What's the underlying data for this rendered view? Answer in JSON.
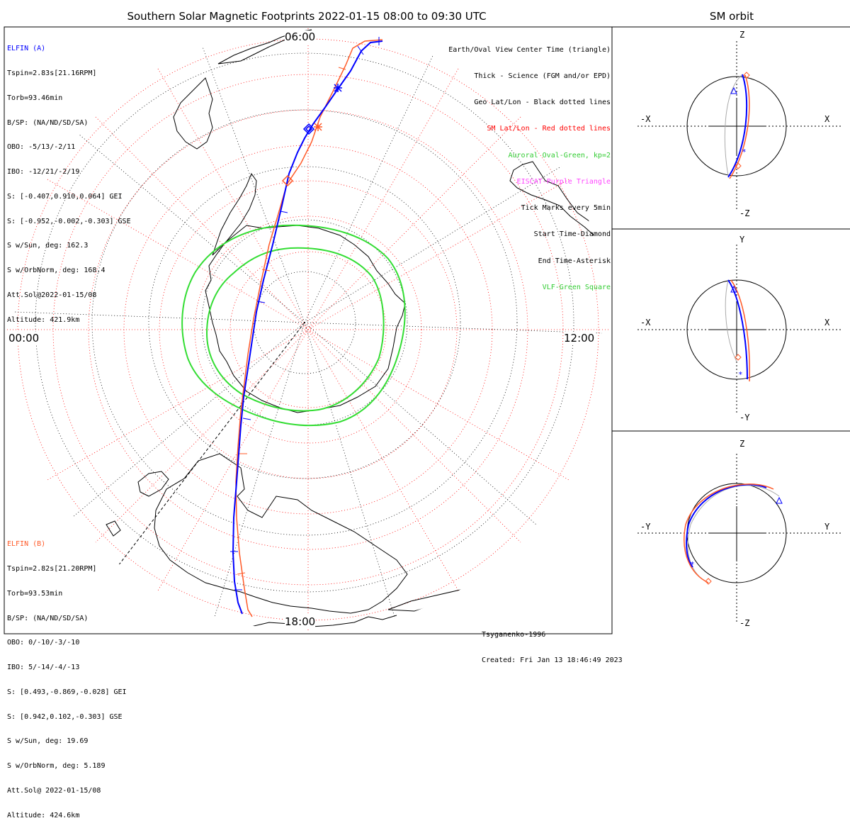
{
  "title": "Southern Solar Magnetic Footprints 2022-01-15 08:00 to 09:30 UTC",
  "sm_title": "SM orbit",
  "time_labels": {
    "top": "06:00",
    "left": "00:00",
    "right": "12:00",
    "bottom": "18:00"
  },
  "colors": {
    "elfin_a": "#0000ff",
    "elfin_b": "#ff5a28",
    "geo_grid": "#000000",
    "sm_grid": "#ff0000",
    "oval": "#33dd33",
    "eiscat": "#ff44ff",
    "vlf": "#33dd33",
    "orbit_grey": "#aaaaaa"
  },
  "elfin_a": {
    "name": "ELFIN (A)",
    "lines": [
      "Tspin=2.83s[21.16RPM]",
      "Torb=93.46min",
      "B/SP: (NA/ND/SD/SA)",
      "OBO: -5/13/-2/11",
      "IBO: -12/21/-2/19",
      "S: [-0.407,0.910,0.064] GEI",
      "S: [-0.952,-0.002,-0.303] GSE",
      "S w/Sun, deg: 162.3",
      "S w/OrbNorm, deg: 168.4",
      "Att.Sol@2022-01-15/08",
      "Altitude: 421.9km"
    ]
  },
  "elfin_b": {
    "name": "ELFIN (B)",
    "lines": [
      "Tspin=2.82s[21.20RPM]",
      "Torb=93.53min",
      "B/SP: (NA/ND/SD/SA)",
      "OBO: 0/-10/-3/-10",
      "IBO: 5/-14/-4/-13",
      "S: [0.493,-0.869,-0.028] GEI",
      "S: [0.942,0.102,-0.303] GSE",
      "S w/Sun, deg: 19.69",
      "S w/OrbNorm, deg: 5.189",
      "Att.Sol@ 2022-01-15/08",
      "Altitude: 424.6km"
    ]
  },
  "legend": [
    {
      "text": "Earth/Oval View Center Time (triangle)",
      "color": "#000000"
    },
    {
      "text": "Thick - Science (FGM and/or EPD)",
      "color": "#000000"
    },
    {
      "text": "Geo Lat/Lon - Black dotted lines",
      "color": "#000000"
    },
    {
      "text": "SM Lat/Lon - Red dotted lines",
      "color": "#ff0000"
    },
    {
      "text": "Auroral Oval-Green, kp=2",
      "color": "#33cc33"
    },
    {
      "text": "EISCAT-Purple Triangle",
      "color": "#ff44ff"
    },
    {
      "text": "Tick Marks every 5min",
      "color": "#000000"
    },
    {
      "text": "Start Time-Diamond",
      "color": "#000000"
    },
    {
      "text": "End Time-Asterisk",
      "color": "#000000"
    },
    {
      "text": "VLF-Green Square",
      "color": "#33cc33"
    }
  ],
  "credits": [
    "Tsyganenko-1996",
    "Created: Fri Jan 13 18:46:49 2023"
  ],
  "sm_panels": [
    {
      "top": "Z",
      "bottom": "-Z",
      "left": "-X",
      "right": "X"
    },
    {
      "top": "Y",
      "bottom": "-Y",
      "left": "-X",
      "right": "X"
    },
    {
      "top": "Z",
      "bottom": "-Z",
      "left": "-Y",
      "right": "Y"
    }
  ],
  "chart_data": {
    "type": "polar footprint map",
    "hemisphere": "south",
    "time_range": "2022-01-15 08:00 to 09:30 UTC",
    "mlt_labels": [
      "00:00",
      "06:00",
      "12:00",
      "18:00"
    ],
    "auroral_oval_kp": 2,
    "tick_interval_min": 5,
    "series": [
      {
        "name": "ELFIN (A)",
        "color": "#0000ff"
      },
      {
        "name": "ELFIN (B)",
        "color": "#ff5a28"
      }
    ]
  }
}
